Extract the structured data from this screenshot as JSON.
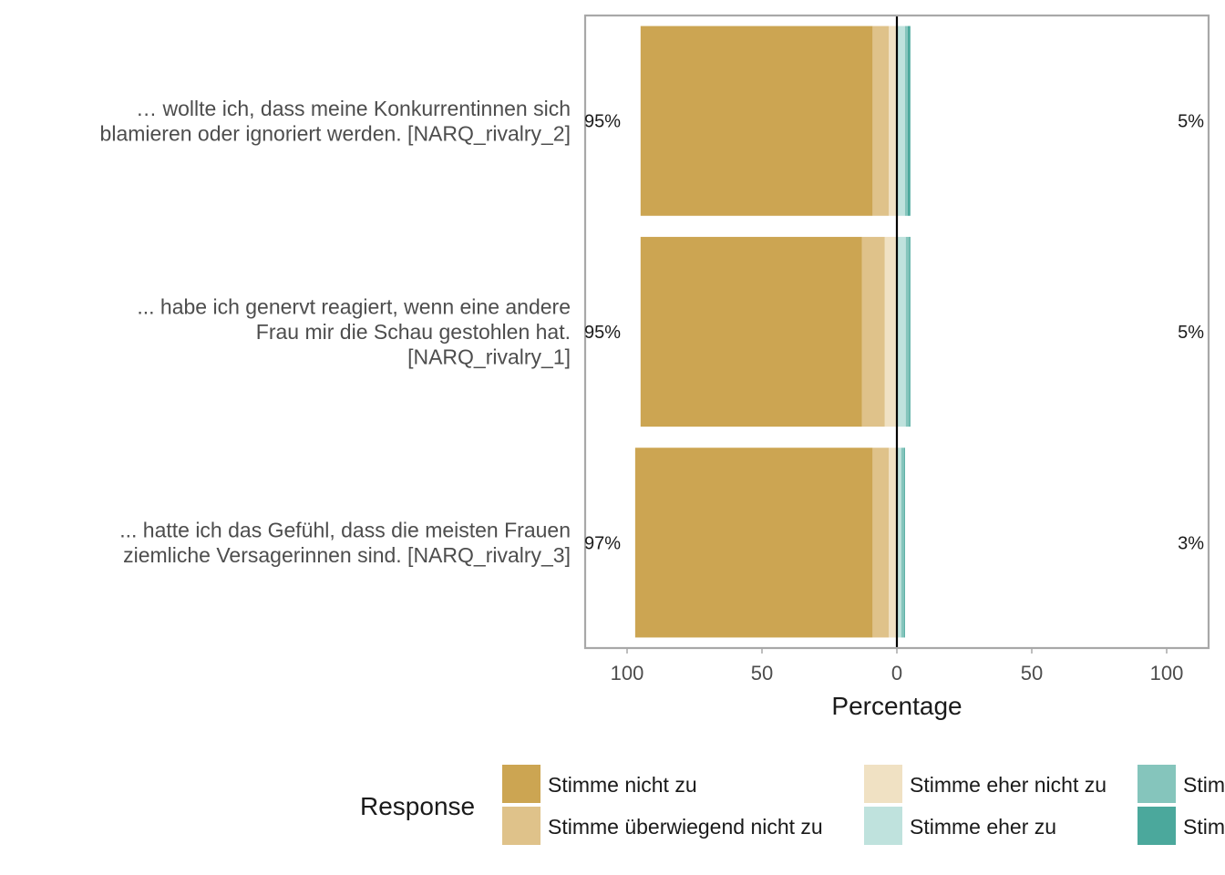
{
  "chart_data": {
    "type": "bar",
    "orientation": "horizontal-diverging",
    "items": [
      {
        "label": "… wollte ich, dass meine Konkurrentinnen sich blamieren oder ignoriert werden. [NARQ_rivalry_2]",
        "lines": [
          "… wollte ich, dass meine Konkurrentinnen sich",
          "blamieren oder ignoriert werden. [NARQ_rivalry_2]"
        ],
        "left_pct_label": "95%",
        "right_pct_label": "5%",
        "values": [
          86,
          6,
          3,
          3,
          1,
          1
        ]
      },
      {
        "label": "... habe ich genervt reagiert, wenn eine andere Frau mir die Schau gestohlen hat. [NARQ_rivalry_1]",
        "lines": [
          "... habe ich genervt reagiert, wenn eine andere",
          "Frau mir die Schau gestohlen hat.",
          "[NARQ_rivalry_1]"
        ],
        "left_pct_label": "95%",
        "right_pct_label": "5%",
        "values": [
          82,
          8.5,
          4.5,
          3.3,
          1.2,
          0.5
        ]
      },
      {
        "label": "... hatte ich das Gefühl, dass die meisten Frauen ziemliche Versagerinnen sind. [NARQ_rivalry_3]",
        "lines": [
          "... hatte ich das Gefühl, dass die meisten Frauen",
          "ziemliche Versagerinnen sind. [NARQ_rivalry_3]"
        ],
        "left_pct_label": "97%",
        "right_pct_label": "3%",
        "values": [
          88,
          6,
          3,
          1.6,
          1,
          0.4
        ]
      }
    ],
    "series": [
      {
        "name": "Stimme nicht zu",
        "color": "#CCA552",
        "side": "negative"
      },
      {
        "name": "Stimme überwiegend nicht zu",
        "color": "#DFC28A",
        "side": "negative"
      },
      {
        "name": "Stimme eher nicht zu",
        "color": "#F0E1C3",
        "side": "negative"
      },
      {
        "name": "Stimme eher zu",
        "color": "#BFE2DD",
        "side": "positive"
      },
      {
        "name": "Stim",
        "color": "#85C5BC",
        "side": "positive"
      },
      {
        "name": "Stim",
        "color": "#4BA89C",
        "side": "positive"
      }
    ],
    "xlabel": "Percentage",
    "xlim": [
      -100,
      100
    ],
    "xticks": [
      {
        "value": -100,
        "label": "100"
      },
      {
        "value": -50,
        "label": "50"
      },
      {
        "value": 0,
        "label": "0"
      },
      {
        "value": 50,
        "label": "50"
      },
      {
        "value": 100,
        "label": "100"
      }
    ],
    "legend": {
      "title": "Response",
      "position": "bottom",
      "entries": [
        {
          "label": "Stimme nicht zu",
          "series": 0
        },
        {
          "label": "Stimme überwiegend nicht zu",
          "series": 1
        },
        {
          "label": "Stimme eher nicht zu",
          "series": 2
        },
        {
          "label": "Stimme eher zu",
          "series": 3
        },
        {
          "label": "Stim",
          "series": 4
        },
        {
          "label": "Stim",
          "series": 5
        }
      ]
    },
    "grid": false
  }
}
